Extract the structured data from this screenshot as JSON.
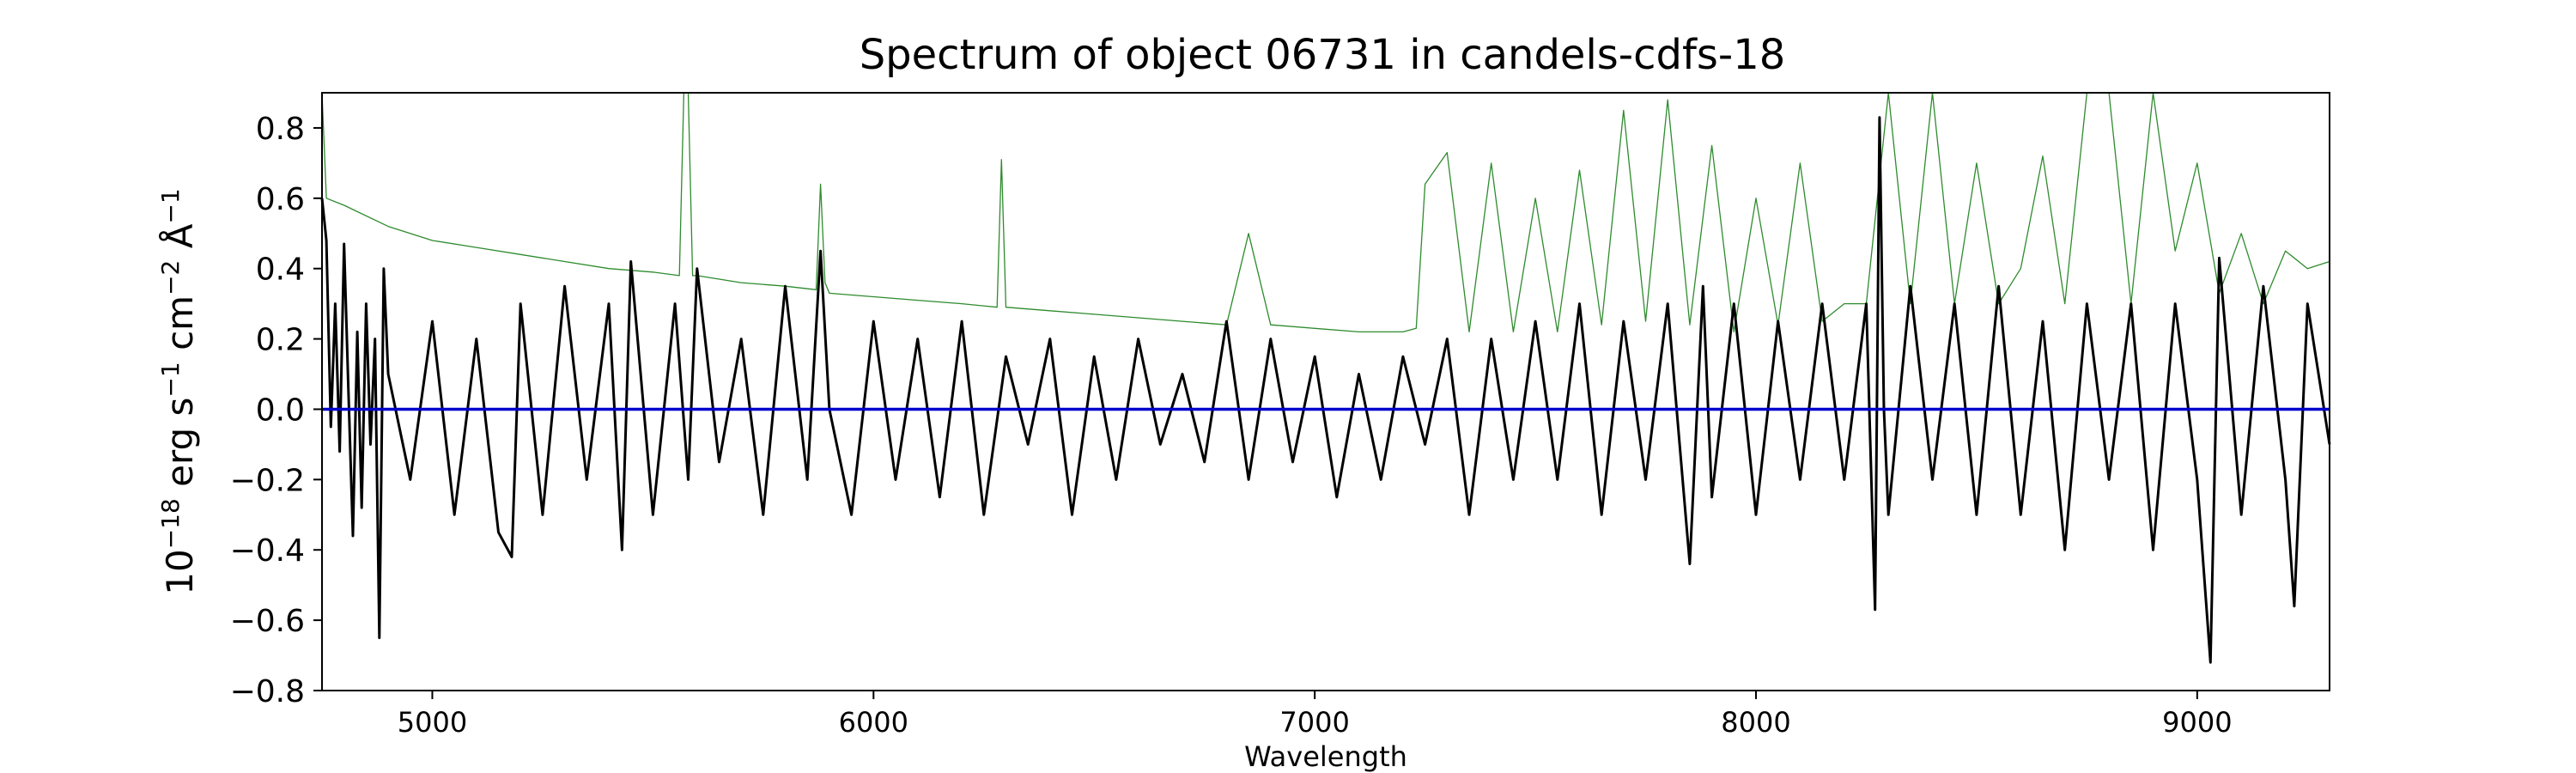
{
  "chart_data": {
    "type": "line",
    "title": "Spectrum of object 06731 in candels-cdfs-18",
    "xlabel": "Wavelength",
    "ylabel_parts": {
      "base": "10",
      "exp1": "−18",
      "unit1": " erg s",
      "exp2": "−1",
      "unit2": " cm",
      "exp3": "−2",
      "unit3": " Å",
      "exp4": "−1"
    },
    "xlim": [
      4750,
      9300
    ],
    "ylim": [
      -0.8,
      0.9
    ],
    "x_ticks": [
      5000,
      6000,
      7000,
      8000,
      9000
    ],
    "x_tick_labels": [
      "5000",
      "6000",
      "7000",
      "8000",
      "9000"
    ],
    "y_ticks": [
      -0.8,
      -0.6,
      -0.4,
      -0.2,
      0.0,
      0.2,
      0.4,
      0.6,
      0.8
    ],
    "y_tick_labels": [
      "−0.8",
      "−0.6",
      "−0.4",
      "−0.2",
      "0.0",
      "0.2",
      "0.4",
      "0.6",
      "0.8"
    ],
    "grid": false,
    "series": [
      {
        "role": "flux",
        "color": "#000000",
        "x": [
          4750,
          4760,
          4770,
          4780,
          4790,
          4800,
          4810,
          4820,
          4830,
          4840,
          4850,
          4860,
          4870,
          4880,
          4890,
          4900,
          4950,
          5000,
          5050,
          5100,
          5150,
          5180,
          5200,
          5250,
          5300,
          5350,
          5400,
          5430,
          5450,
          5500,
          5550,
          5580,
          5600,
          5650,
          5700,
          5750,
          5800,
          5850,
          5880,
          5900,
          5950,
          6000,
          6050,
          6100,
          6150,
          6200,
          6250,
          6300,
          6350,
          6400,
          6450,
          6500,
          6550,
          6600,
          6650,
          6700,
          6750,
          6800,
          6850,
          6900,
          6950,
          7000,
          7050,
          7100,
          7150,
          7200,
          7250,
          7300,
          7350,
          7400,
          7450,
          7500,
          7550,
          7600,
          7650,
          7700,
          7750,
          7800,
          7850,
          7880,
          7900,
          7950,
          8000,
          8050,
          8100,
          8150,
          8200,
          8250,
          8270,
          8280,
          8290,
          8300,
          8350,
          8400,
          8450,
          8500,
          8550,
          8600,
          8650,
          8700,
          8750,
          8800,
          8850,
          8900,
          8950,
          9000,
          9030,
          9050,
          9100,
          9150,
          9200,
          9220,
          9250,
          9300
        ],
        "y": [
          0.6,
          0.48,
          -0.05,
          0.3,
          -0.12,
          0.47,
          0.05,
          -0.36,
          0.22,
          -0.28,
          0.3,
          -0.1,
          0.2,
          -0.65,
          0.4,
          0.1,
          -0.2,
          0.25,
          -0.3,
          0.2,
          -0.35,
          -0.42,
          0.3,
          -0.3,
          0.35,
          -0.2,
          0.3,
          -0.4,
          0.42,
          -0.3,
          0.3,
          -0.2,
          0.4,
          -0.15,
          0.2,
          -0.3,
          0.35,
          -0.2,
          0.45,
          0.0,
          -0.3,
          0.25,
          -0.2,
          0.2,
          -0.25,
          0.25,
          -0.3,
          0.15,
          -0.1,
          0.2,
          -0.3,
          0.15,
          -0.2,
          0.2,
          -0.1,
          0.1,
          -0.15,
          0.25,
          -0.2,
          0.2,
          -0.15,
          0.15,
          -0.25,
          0.1,
          -0.2,
          0.15,
          -0.1,
          0.2,
          -0.3,
          0.2,
          -0.2,
          0.25,
          -0.2,
          0.3,
          -0.3,
          0.25,
          -0.2,
          0.3,
          -0.44,
          0.35,
          -0.25,
          0.3,
          -0.3,
          0.25,
          -0.2,
          0.3,
          -0.2,
          0.3,
          -0.57,
          0.83,
          0.0,
          -0.3,
          0.35,
          -0.2,
          0.3,
          -0.3,
          0.35,
          -0.3,
          0.25,
          -0.4,
          0.3,
          -0.2,
          0.3,
          -0.4,
          0.3,
          -0.2,
          -0.72,
          0.43,
          -0.3,
          0.35,
          -0.2,
          -0.56,
          0.3,
          -0.1
        ]
      },
      {
        "role": "error",
        "color": "#2e8b2e",
        "x": [
          4750,
          4760,
          4800,
          4900,
          5000,
          5100,
          5200,
          5300,
          5400,
          5500,
          5560,
          5570,
          5580,
          5590,
          5600,
          5700,
          5800,
          5870,
          5880,
          5890,
          5900,
          6000,
          6100,
          6200,
          6280,
          6290,
          6300,
          6400,
          6500,
          6600,
          6700,
          6800,
          6850,
          6900,
          7000,
          7100,
          7200,
          7230,
          7250,
          7300,
          7350,
          7400,
          7450,
          7500,
          7550,
          7600,
          7650,
          7700,
          7750,
          7800,
          7850,
          7900,
          7950,
          8000,
          8050,
          8100,
          8150,
          8200,
          8250,
          8300,
          8350,
          8400,
          8450,
          8500,
          8550,
          8600,
          8650,
          8700,
          8750,
          8800,
          8850,
          8900,
          8950,
          9000,
          9050,
          9100,
          9150,
          9200,
          9250,
          9300
        ],
        "y": [
          0.9,
          0.6,
          0.58,
          0.52,
          0.48,
          0.46,
          0.44,
          0.42,
          0.4,
          0.39,
          0.38,
          0.9,
          0.9,
          0.38,
          0.38,
          0.36,
          0.35,
          0.34,
          0.64,
          0.36,
          0.33,
          0.32,
          0.31,
          0.3,
          0.29,
          0.71,
          0.29,
          0.28,
          0.27,
          0.26,
          0.25,
          0.24,
          0.5,
          0.24,
          0.23,
          0.22,
          0.22,
          0.23,
          0.64,
          0.73,
          0.22,
          0.7,
          0.22,
          0.6,
          0.22,
          0.68,
          0.24,
          0.85,
          0.25,
          0.88,
          0.24,
          0.75,
          0.22,
          0.6,
          0.24,
          0.7,
          0.25,
          0.3,
          0.3,
          0.9,
          0.3,
          0.9,
          0.3,
          0.7,
          0.3,
          0.4,
          0.72,
          0.3,
          0.9,
          0.9,
          0.3,
          0.9,
          0.45,
          0.7,
          0.33,
          0.5,
          0.3,
          0.45,
          0.4,
          0.42
        ]
      },
      {
        "role": "zero",
        "color": "#0000cc",
        "x": [
          4750,
          9300
        ],
        "y": [
          0.0,
          0.0
        ]
      }
    ]
  }
}
